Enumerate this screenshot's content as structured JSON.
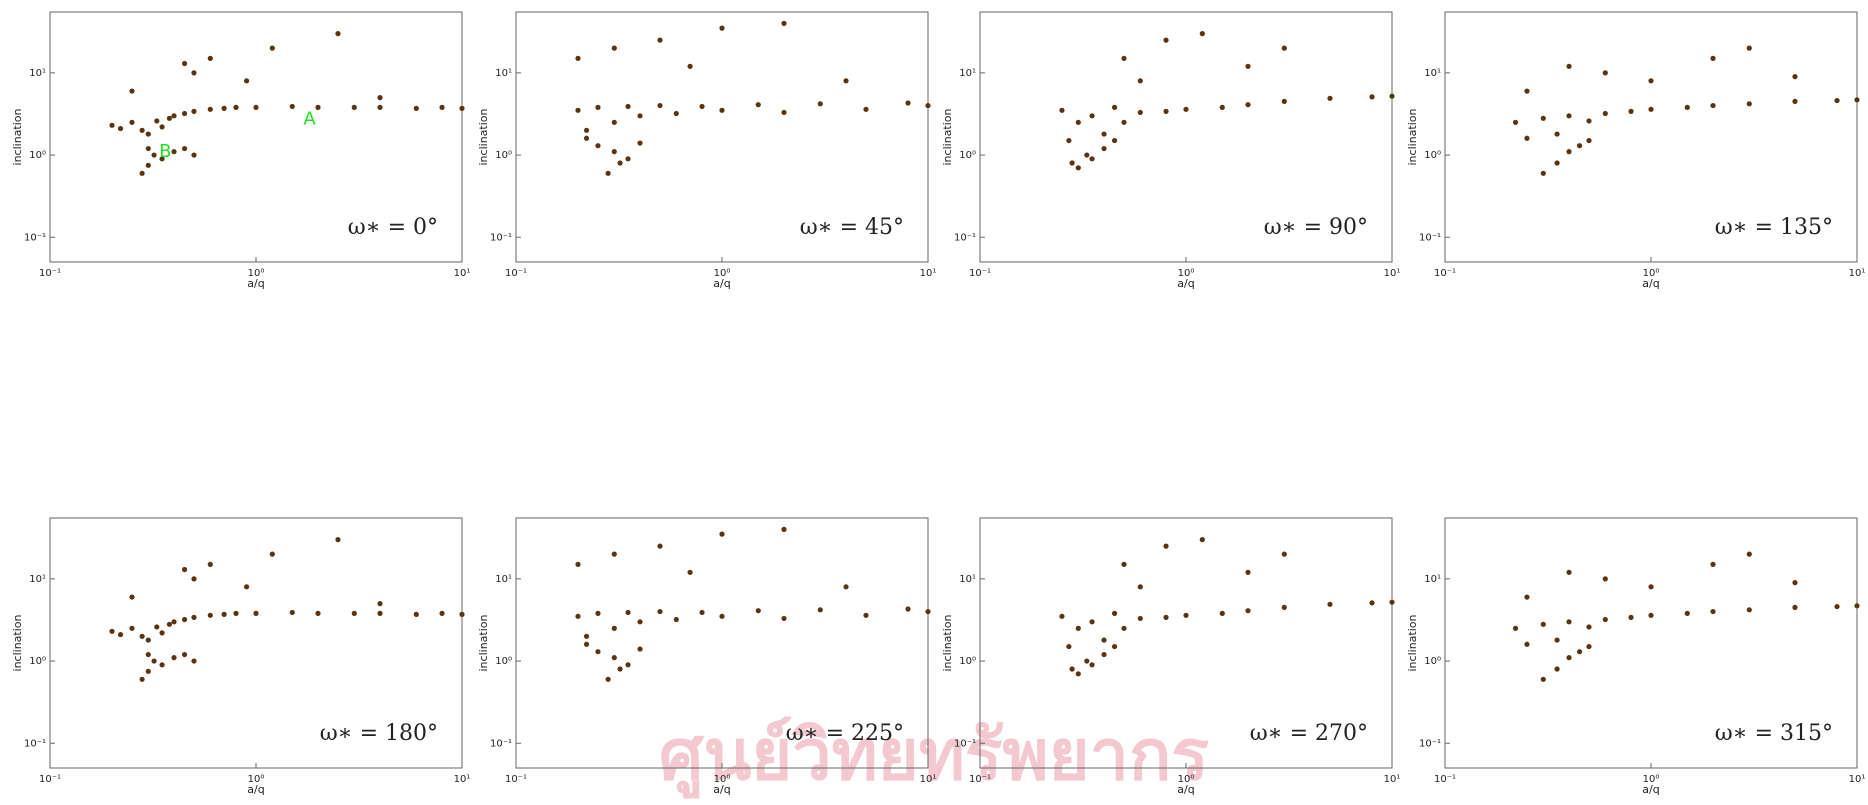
{
  "chart_data": [
    {
      "type": "scatter",
      "annotation": "ω∗ = 0°",
      "xlabel": "a/q",
      "ylabel": "inclination",
      "log_x": true,
      "log_y": true,
      "color": "#5c3310",
      "xlim": [
        0.1,
        10
      ],
      "ylim": [
        0.05,
        55
      ],
      "xticks": [
        {
          "value": 0.1,
          "label": "10⁻¹"
        },
        {
          "value": 1,
          "label": "10⁰"
        },
        {
          "value": 10,
          "label": "10¹"
        }
      ],
      "yticks": [
        {
          "value": 0.1,
          "label": "10⁻¹"
        },
        {
          "value": 1,
          "label": "10⁰"
        },
        {
          "value": 10,
          "label": "10¹"
        }
      ],
      "x": [
        0.2,
        0.22,
        0.25,
        0.28,
        0.3,
        0.33,
        0.35,
        0.38,
        0.4,
        0.45,
        0.5,
        0.6,
        0.7,
        0.8,
        1,
        1.5,
        2,
        3,
        4,
        6,
        8,
        10,
        0.3,
        0.32,
        0.35,
        0.4,
        0.45,
        0.5,
        0.28,
        0.3,
        0.25,
        0.45,
        0.6,
        1.2,
        2.5,
        4,
        0.5,
        0.9
      ],
      "y": [
        2.3,
        2.1,
        2.5,
        2.0,
        1.8,
        2.6,
        2.2,
        2.8,
        3.0,
        3.2,
        3.4,
        3.6,
        3.7,
        3.8,
        3.8,
        3.9,
        3.8,
        3.8,
        3.8,
        3.7,
        3.8,
        3.7,
        1.2,
        1.0,
        0.9,
        1.1,
        1.2,
        1.0,
        0.6,
        0.75,
        6,
        13,
        15,
        20,
        30,
        5,
        10,
        8
      ],
      "labels": [
        "A",
        "B"
      ],
      "label_color": "#22dd22"
    },
    {
      "type": "scatter",
      "annotation": "ω∗ = 45°",
      "xlabel": "a/q",
      "ylabel": "inclination",
      "log_x": true,
      "log_y": true,
      "color": "#5c3310",
      "xlim": [
        0.1,
        10
      ],
      "ylim": [
        0.05,
        55
      ],
      "xticks": [
        {
          "value": 0.1,
          "label": "10⁻¹"
        },
        {
          "value": 1,
          "label": "10⁰"
        },
        {
          "value": 10,
          "label": "10¹"
        }
      ],
      "yticks": [
        {
          "value": 0.1,
          "label": "10⁻¹"
        },
        {
          "value": 1,
          "label": "10⁰"
        },
        {
          "value": 10,
          "label": "10¹"
        }
      ],
      "x": [
        0.2,
        0.22,
        0.25,
        0.3,
        0.35,
        0.4,
        0.5,
        0.6,
        0.8,
        1,
        1.5,
        2,
        3,
        5,
        8,
        10,
        0.22,
        0.25,
        0.3,
        0.35,
        0.4,
        0.28,
        0.32,
        0.2,
        0.3,
        0.5,
        1,
        2,
        0.7,
        4
      ],
      "y": [
        3.5,
        2.0,
        3.8,
        2.5,
        3.9,
        3.0,
        4.0,
        3.2,
        3.9,
        3.5,
        4.1,
        3.3,
        4.2,
        3.6,
        4.3,
        4.0,
        1.6,
        1.3,
        1.1,
        0.9,
        1.4,
        0.6,
        0.8,
        15,
        20,
        25,
        35,
        40,
        12,
        8
      ]
    },
    {
      "type": "scatter",
      "annotation": "ω∗ = 90°",
      "xlabel": "a/q",
      "ylabel": "inclination",
      "log_x": true,
      "log_y": true,
      "color": "#5c3310",
      "xlim": [
        0.1,
        10
      ],
      "ylim": [
        0.05,
        55
      ],
      "xticks": [
        {
          "value": 0.1,
          "label": "10⁻¹"
        },
        {
          "value": 1,
          "label": "10⁰"
        },
        {
          "value": 10,
          "label": "10¹"
        }
      ],
      "yticks": [
        {
          "value": 0.1,
          "label": "10⁻¹"
        },
        {
          "value": 1,
          "label": "10⁰"
        },
        {
          "value": 10,
          "label": "10¹"
        }
      ],
      "x": [
        0.25,
        0.27,
        0.3,
        0.33,
        0.35,
        0.4,
        0.45,
        0.5,
        0.6,
        0.8,
        1,
        1.5,
        2,
        3,
        5,
        8,
        10,
        0.28,
        0.3,
        0.35,
        0.4,
        0.45,
        0.5,
        0.8,
        1.2,
        2,
        3,
        0.6
      ],
      "y": [
        3.5,
        1.5,
        2.5,
        1.0,
        3.0,
        1.8,
        3.8,
        2.5,
        3.3,
        3.4,
        3.6,
        3.8,
        4.1,
        4.5,
        4.9,
        5.1,
        5.2,
        0.8,
        0.7,
        0.9,
        1.2,
        1.5,
        15,
        25,
        30,
        12,
        20,
        8
      ]
    },
    {
      "type": "scatter",
      "annotation": "ω∗ = 135°",
      "xlabel": "a/q",
      "ylabel": "inclination",
      "log_x": true,
      "log_y": true,
      "color": "#5c3310",
      "xlim": [
        0.1,
        10
      ],
      "ylim": [
        0.05,
        55
      ],
      "xticks": [
        {
          "value": 0.1,
          "label": "10⁻¹"
        },
        {
          "value": 1,
          "label": "10⁰"
        },
        {
          "value": 10,
          "label": "10¹"
        }
      ],
      "yticks": [
        {
          "value": 0.1,
          "label": "10⁻¹"
        },
        {
          "value": 1,
          "label": "10⁰"
        },
        {
          "value": 10,
          "label": "10¹"
        }
      ],
      "x": [
        0.22,
        0.25,
        0.3,
        0.35,
        0.4,
        0.5,
        0.6,
        0.8,
        1,
        1.5,
        2,
        3,
        5,
        8,
        10,
        0.3,
        0.35,
        0.4,
        0.45,
        0.5,
        0.25,
        0.6,
        1,
        2,
        3,
        5,
        0.4
      ],
      "y": [
        2.5,
        1.6,
        2.8,
        1.8,
        3.0,
        2.6,
        3.2,
        3.4,
        3.6,
        3.8,
        4.0,
        4.2,
        4.5,
        4.6,
        4.7,
        0.6,
        0.8,
        1.1,
        1.3,
        1.5,
        6,
        10,
        8,
        15,
        20,
        9,
        12
      ]
    },
    {
      "type": "scatter",
      "annotation": "ω∗ = 180°",
      "xlabel": "a/q",
      "ylabel": "inclination",
      "log_x": true,
      "log_y": true,
      "color": "#5c3310",
      "xlim": [
        0.1,
        10
      ],
      "ylim": [
        0.05,
        55
      ],
      "xticks": [
        {
          "value": 0.1,
          "label": "10⁻¹"
        },
        {
          "value": 1,
          "label": "10⁰"
        },
        {
          "value": 10,
          "label": "10¹"
        }
      ],
      "yticks": [
        {
          "value": 0.1,
          "label": "10⁻¹"
        },
        {
          "value": 1,
          "label": "10⁰"
        },
        {
          "value": 10,
          "label": "10¹"
        }
      ],
      "x": [
        0.2,
        0.22,
        0.25,
        0.28,
        0.3,
        0.33,
        0.35,
        0.38,
        0.4,
        0.45,
        0.5,
        0.6,
        0.7,
        0.8,
        1,
        1.5,
        2,
        3,
        4,
        6,
        8,
        10,
        0.3,
        0.32,
        0.35,
        0.4,
        0.45,
        0.5,
        0.28,
        0.3,
        0.25,
        0.45,
        0.6,
        1.2,
        2.5,
        4,
        0.5,
        0.9
      ],
      "y": [
        2.3,
        2.1,
        2.5,
        2.0,
        1.8,
        2.6,
        2.2,
        2.8,
        3.0,
        3.2,
        3.4,
        3.6,
        3.7,
        3.8,
        3.8,
        3.9,
        3.8,
        3.8,
        3.8,
        3.7,
        3.8,
        3.7,
        1.2,
        1.0,
        0.9,
        1.1,
        1.2,
        1.0,
        0.6,
        0.75,
        6,
        13,
        15,
        20,
        30,
        5,
        10,
        8
      ]
    },
    {
      "type": "scatter",
      "annotation": "ω∗ = 225°",
      "xlabel": "a/q",
      "ylabel": "inclination",
      "log_x": true,
      "log_y": true,
      "color": "#5c3310",
      "xlim": [
        0.1,
        10
      ],
      "ylim": [
        0.05,
        55
      ],
      "xticks": [
        {
          "value": 0.1,
          "label": "10⁻¹"
        },
        {
          "value": 1,
          "label": "10⁰"
        },
        {
          "value": 10,
          "label": "10¹"
        }
      ],
      "yticks": [
        {
          "value": 0.1,
          "label": "10⁻¹"
        },
        {
          "value": 1,
          "label": "10⁰"
        },
        {
          "value": 10,
          "label": "10¹"
        }
      ],
      "x": [
        0.2,
        0.22,
        0.25,
        0.3,
        0.35,
        0.4,
        0.5,
        0.6,
        0.8,
        1,
        1.5,
        2,
        3,
        5,
        8,
        10,
        0.22,
        0.25,
        0.3,
        0.35,
        0.4,
        0.28,
        0.32,
        0.2,
        0.3,
        0.5,
        1,
        2,
        0.7,
        4
      ],
      "y": [
        3.5,
        2.0,
        3.8,
        2.5,
        3.9,
        3.0,
        4.0,
        3.2,
        3.9,
        3.5,
        4.1,
        3.3,
        4.2,
        3.6,
        4.3,
        4.0,
        1.6,
        1.3,
        1.1,
        0.9,
        1.4,
        0.6,
        0.8,
        15,
        20,
        25,
        35,
        40,
        12,
        8
      ]
    },
    {
      "type": "scatter",
      "annotation": "ω∗ = 270°",
      "xlabel": "a/q",
      "ylabel": "inclination",
      "log_x": true,
      "log_y": true,
      "color": "#5c3310",
      "xlim": [
        0.1,
        10
      ],
      "ylim": [
        0.05,
        55
      ],
      "xticks": [
        {
          "value": 0.1,
          "label": "10⁻¹"
        },
        {
          "value": 1,
          "label": "10⁰"
        },
        {
          "value": 10,
          "label": "10¹"
        }
      ],
      "yticks": [
        {
          "value": 0.1,
          "label": "10⁻¹"
        },
        {
          "value": 1,
          "label": "10⁰"
        },
        {
          "value": 10,
          "label": "10¹"
        }
      ],
      "x": [
        0.25,
        0.27,
        0.3,
        0.33,
        0.35,
        0.4,
        0.45,
        0.5,
        0.6,
        0.8,
        1,
        1.5,
        2,
        3,
        5,
        8,
        10,
        0.28,
        0.3,
        0.35,
        0.4,
        0.45,
        0.5,
        0.8,
        1.2,
        2,
        3,
        0.6
      ],
      "y": [
        3.5,
        1.5,
        2.5,
        1.0,
        3.0,
        1.8,
        3.8,
        2.5,
        3.3,
        3.4,
        3.6,
        3.8,
        4.1,
        4.5,
        4.9,
        5.1,
        5.2,
        0.8,
        0.7,
        0.9,
        1.2,
        1.5,
        15,
        25,
        30,
        12,
        20,
        8
      ]
    },
    {
      "type": "scatter",
      "annotation": "ω∗ = 315°",
      "xlabel": "a/q",
      "ylabel": "inclination",
      "log_x": true,
      "log_y": true,
      "color": "#5c3310",
      "xlim": [
        0.1,
        10
      ],
      "ylim": [
        0.05,
        55
      ],
      "xticks": [
        {
          "value": 0.1,
          "label": "10⁻¹"
        },
        {
          "value": 1,
          "label": "10⁰"
        },
        {
          "value": 10,
          "label": "10¹"
        }
      ],
      "yticks": [
        {
          "value": 0.1,
          "label": "10⁻¹"
        },
        {
          "value": 1,
          "label": "10⁰"
        },
        {
          "value": 10,
          "label": "10¹"
        }
      ],
      "x": [
        0.22,
        0.25,
        0.3,
        0.35,
        0.4,
        0.5,
        0.6,
        0.8,
        1,
        1.5,
        2,
        3,
        5,
        8,
        10,
        0.3,
        0.35,
        0.4,
        0.45,
        0.5,
        0.25,
        0.6,
        1,
        2,
        3,
        5,
        0.4
      ],
      "y": [
        2.5,
        1.6,
        2.8,
        1.8,
        3.0,
        2.6,
        3.2,
        3.4,
        3.6,
        3.8,
        4.0,
        4.2,
        4.5,
        4.6,
        4.7,
        0.6,
        0.8,
        1.1,
        1.3,
        1.5,
        6,
        10,
        8,
        15,
        20,
        9,
        12
      ]
    }
  ],
  "watermark": "ศูนย์วิทยทรัพยากร"
}
